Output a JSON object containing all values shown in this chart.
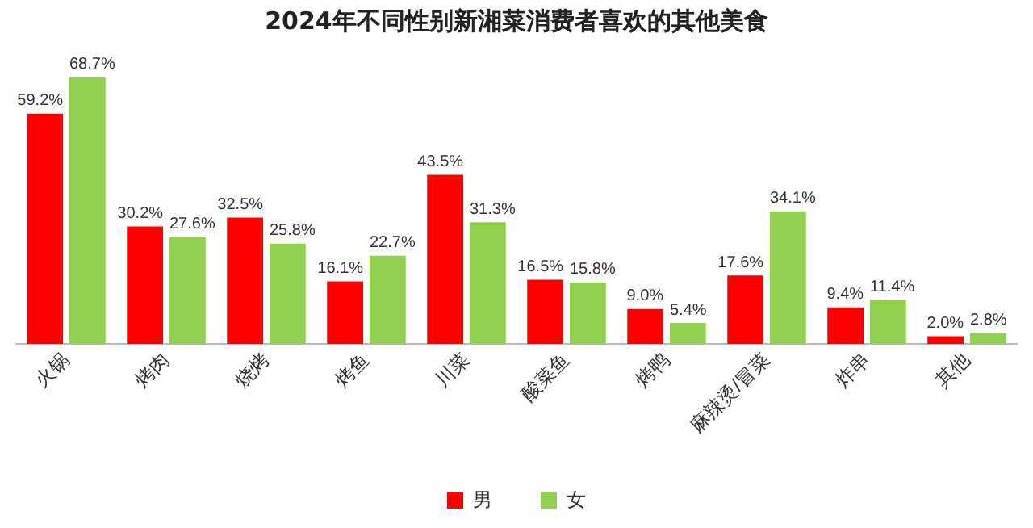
{
  "chart_data": {
    "type": "bar",
    "title": "2024年不同性别新湘菜消费者喜欢的其他美食",
    "categories": [
      "火锅",
      "烤肉",
      "烧烤",
      "烤鱼",
      "川菜",
      "酸菜鱼",
      "烤鸭",
      "麻辣烫/冒菜",
      "炸串",
      "其他"
    ],
    "series": [
      {
        "name": "男",
        "color": "#ff0000",
        "values": [
          59.2,
          30.2,
          32.5,
          16.1,
          43.5,
          16.5,
          9.0,
          17.6,
          9.4,
          2.0
        ],
        "value_labels": [
          "59.2%",
          "30.2%",
          "32.5%",
          "16.1%",
          "43.5%",
          "16.5%",
          "9.0%",
          "17.6%",
          "9.4%",
          "2.0%"
        ]
      },
      {
        "name": "女",
        "color": "#92d050",
        "values": [
          68.7,
          27.6,
          25.8,
          22.7,
          31.3,
          15.8,
          5.4,
          34.1,
          11.4,
          2.8
        ],
        "value_labels": [
          "68.7%",
          "27.6%",
          "25.8%",
          "22.7%",
          "31.3%",
          "15.8%",
          "5.4%",
          "34.1%",
          "11.4%",
          "2.8%"
        ]
      }
    ],
    "grid": false,
    "legend": "bottom"
  }
}
